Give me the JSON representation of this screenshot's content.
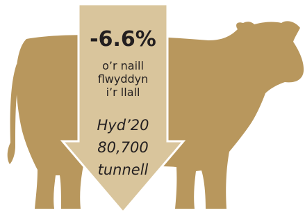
{
  "headline": {
    "change": "-6.6%",
    "caption": [
      "o’r naill",
      "flwyddyn",
      "i’r llall"
    ]
  },
  "detail": {
    "period": "Hyd’20",
    "amount": "80,700",
    "unit": "tunnell"
  }
}
